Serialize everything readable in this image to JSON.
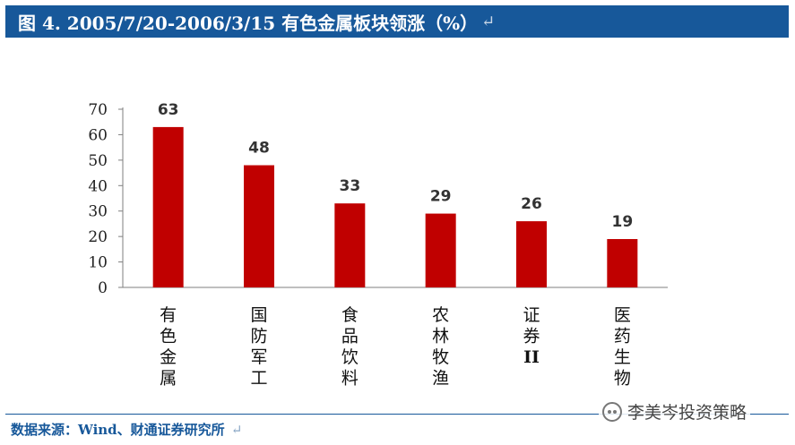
{
  "header": {
    "title": "图 4. 2005/7/20-2006/3/15 有色金属板块领涨（%）",
    "paragraph_mark": "↵"
  },
  "footer": {
    "source": "数据来源：Wind、财通证券研究所",
    "paragraph_mark": "↵",
    "watermark": "李美岑投资策略"
  },
  "colors": {
    "bar": "#c00000",
    "header_bg": "#17589a",
    "axis": "#7f7f7f",
    "label": "#333333"
  },
  "chart_data": {
    "type": "bar",
    "categories": [
      "有色金属",
      "国防军工",
      "食品饮料",
      "农林牧渔",
      "证券II",
      "医药生物"
    ],
    "values": [
      63,
      48,
      33,
      29,
      26,
      19
    ],
    "data_labels": [
      "63",
      "48",
      "33",
      "29",
      "26",
      "19"
    ],
    "yticks": [
      0,
      10,
      20,
      30,
      40,
      50,
      60,
      70
    ],
    "ylim": [
      0,
      70
    ],
    "grid": false,
    "legend": "none"
  }
}
